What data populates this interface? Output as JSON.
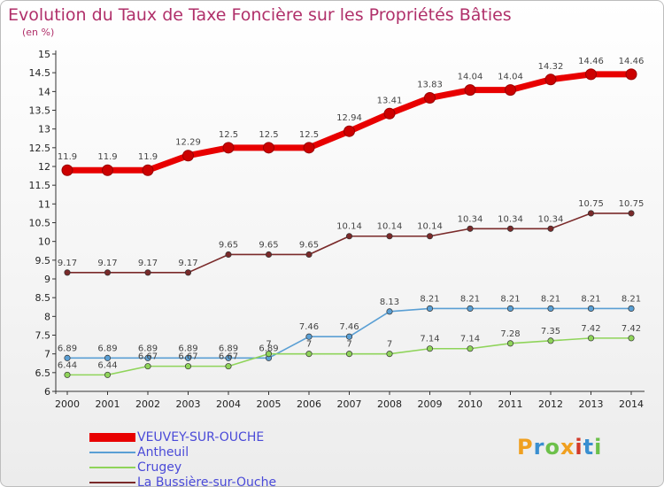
{
  "header": {
    "title": "Evolution du Taux de Taxe Foncière sur les Propriétés Bâties",
    "unit": "(en %)"
  },
  "logo": {
    "text": "Proxiti",
    "letters": [
      "P",
      "r",
      "o",
      "x",
      "i",
      "t",
      "i"
    ],
    "colors": [
      "#f0a020",
      "#3a8fd0",
      "#6cc04a",
      "#f0a020",
      "#d23a2a",
      "#3a8fd0",
      "#6cc04a"
    ]
  },
  "chart_data": {
    "type": "line",
    "title": "Evolution du Taux de Taxe Foncière sur les Propriétés Bâties",
    "ylabel": "(en %)",
    "xlabel": "",
    "x": [
      "2000",
      "2001",
      "2002",
      "2003",
      "2004",
      "2005",
      "2006",
      "2007",
      "2008",
      "2009",
      "2010",
      "2011",
      "2012",
      "2013",
      "2014"
    ],
    "ylim": [
      6,
      15
    ],
    "yticks": [
      "6",
      "6.5",
      "7",
      "7.5",
      "8",
      "8.5",
      "9",
      "9.5",
      "10",
      "10.5",
      "11",
      "11.5",
      "12",
      "12.5",
      "13",
      "13.5",
      "14",
      "14.5",
      "15"
    ],
    "grid": false,
    "legend_position": "bottom-left",
    "series": [
      {
        "name": "VEUVEY-SUR-OUCHE",
        "color": "#e80000",
        "thick": true,
        "values": [
          11.9,
          11.9,
          11.9,
          12.29,
          12.5,
          12.5,
          12.5,
          12.94,
          13.41,
          13.83,
          14.04,
          14.04,
          14.32,
          14.46,
          14.46
        ],
        "labels": [
          "11.9",
          "11.9",
          "11.9",
          "12.29",
          "12.5",
          "12.5",
          "12.5",
          "12.94",
          "13.41",
          "13.83",
          "14.04",
          "14.04",
          "14.32",
          "14.46",
          "14.46"
        ]
      },
      {
        "name": "Antheuil",
        "color": "#5a9fd4",
        "thick": false,
        "values": [
          6.89,
          6.89,
          6.89,
          6.89,
          6.89,
          6.89,
          7.46,
          7.46,
          8.13,
          8.21,
          8.21,
          8.21,
          8.21,
          8.21,
          8.21
        ],
        "labels": [
          "6.89",
          "6.89",
          "6.89",
          "6.89",
          "6.89",
          "6.89",
          "7.46",
          "7.46",
          "8.13",
          "8.21",
          "8.21",
          "8.21",
          "8.21",
          "8.21",
          "8.21"
        ]
      },
      {
        "name": "Crugey",
        "color": "#8fd45a",
        "thick": false,
        "values": [
          6.44,
          6.44,
          6.67,
          6.67,
          6.67,
          7,
          7,
          7,
          7,
          7.14,
          7.14,
          7.28,
          7.35,
          7.42,
          7.42
        ],
        "labels": [
          "6.44",
          "6.44",
          "6.67",
          "6.67",
          "6.67",
          "7",
          "7",
          "7",
          "7",
          "7.14",
          "7.14",
          "7.28",
          "7.35",
          "7.42",
          "7.42"
        ]
      },
      {
        "name": "La Bussière-sur-Ouche",
        "color": "#7a2a2a",
        "thick": false,
        "values": [
          9.17,
          9.17,
          9.17,
          9.17,
          9.65,
          9.65,
          9.65,
          10.14,
          10.14,
          10.14,
          10.34,
          10.34,
          10.34,
          10.75,
          10.75
        ],
        "labels": [
          "9.17",
          "9.17",
          "9.17",
          "9.17",
          "9.65",
          "9.65",
          "9.65",
          "10.14",
          "10.14",
          "10.14",
          "10.34",
          "10.34",
          "10.34",
          "10.75",
          "10.75"
        ]
      }
    ]
  }
}
